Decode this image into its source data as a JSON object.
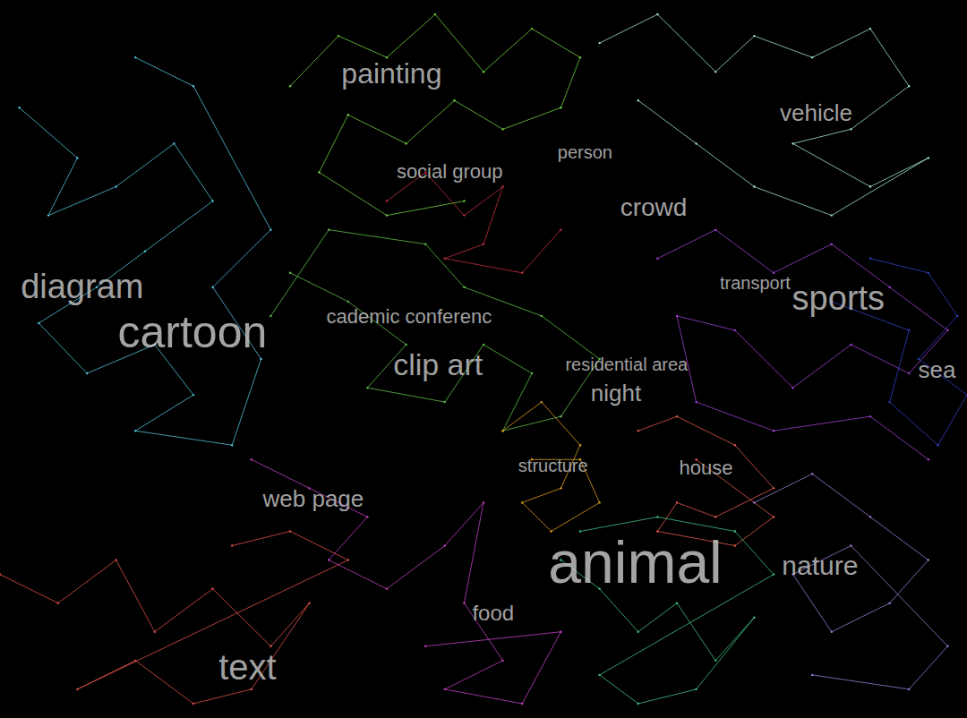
{
  "chart_data": {
    "type": "scatter",
    "marker": "dot",
    "line_style": "solid",
    "grid": false,
    "tick_labels": false,
    "xlim": [
      0,
      100
    ],
    "ylim": [
      0,
      100
    ],
    "series": [
      {
        "color": "#4fc3d9",
        "points": [
          [
            2,
            85
          ],
          [
            8,
            78
          ],
          [
            5,
            70
          ],
          [
            12,
            74
          ],
          [
            18,
            80
          ],
          [
            22,
            72
          ],
          [
            15,
            65
          ],
          [
            10,
            60
          ],
          [
            4,
            55
          ],
          [
            9,
            48
          ],
          [
            16,
            52
          ],
          [
            20,
            45
          ],
          [
            14,
            40
          ],
          [
            24,
            38
          ],
          [
            27,
            50
          ],
          [
            22,
            60
          ],
          [
            28,
            68
          ],
          [
            20,
            88
          ],
          [
            14,
            92
          ]
        ]
      },
      {
        "color": "#6fcf3f",
        "points": [
          [
            30,
            88
          ],
          [
            35,
            95
          ],
          [
            40,
            92
          ],
          [
            45,
            98
          ],
          [
            50,
            90
          ],
          [
            55,
            96
          ],
          [
            60,
            92
          ],
          [
            58,
            85
          ],
          [
            52,
            82
          ],
          [
            47,
            86
          ],
          [
            42,
            80
          ],
          [
            36,
            84
          ],
          [
            33,
            76
          ],
          [
            40,
            70
          ],
          [
            48,
            72
          ]
        ]
      },
      {
        "color": "#5fbf4a",
        "points": [
          [
            30,
            62
          ],
          [
            36,
            58
          ],
          [
            42,
            52
          ],
          [
            38,
            46
          ],
          [
            46,
            44
          ],
          [
            50,
            52
          ],
          [
            55,
            48
          ],
          [
            52,
            40
          ],
          [
            58,
            42
          ],
          [
            62,
            50
          ],
          [
            56,
            56
          ],
          [
            48,
            60
          ],
          [
            44,
            66
          ],
          [
            34,
            68
          ],
          [
            28,
            56
          ]
        ]
      },
      {
        "color": "#a0e0d0",
        "points": [
          [
            62,
            94
          ],
          [
            68,
            98
          ],
          [
            74,
            90
          ],
          [
            78,
            95
          ],
          [
            84,
            92
          ],
          [
            90,
            96
          ],
          [
            94,
            88
          ],
          [
            88,
            82
          ],
          [
            82,
            80
          ],
          [
            90,
            74
          ],
          [
            96,
            78
          ],
          [
            86,
            70
          ],
          [
            78,
            74
          ],
          [
            72,
            80
          ],
          [
            66,
            86
          ]
        ]
      },
      {
        "color": "#a040d0",
        "points": [
          [
            68,
            64
          ],
          [
            74,
            68
          ],
          [
            80,
            62
          ],
          [
            86,
            66
          ],
          [
            92,
            60
          ],
          [
            98,
            54
          ],
          [
            94,
            48
          ],
          [
            88,
            52
          ],
          [
            82,
            46
          ],
          [
            76,
            54
          ],
          [
            70,
            56
          ],
          [
            72,
            44
          ],
          [
            80,
            40
          ],
          [
            90,
            42
          ],
          [
            96,
            36
          ]
        ]
      },
      {
        "color": "#3040c0",
        "points": [
          [
            90,
            64
          ],
          [
            96,
            62
          ],
          [
            99,
            56
          ],
          [
            95,
            50
          ],
          [
            100,
            45
          ],
          [
            97,
            38
          ],
          [
            92,
            44
          ],
          [
            94,
            54
          ],
          [
            86,
            58
          ]
        ]
      },
      {
        "color": "#e0a020",
        "points": [
          [
            52,
            40
          ],
          [
            56,
            44
          ],
          [
            60,
            38
          ],
          [
            58,
            32
          ],
          [
            54,
            30
          ],
          [
            57,
            26
          ],
          [
            62,
            30
          ],
          [
            60,
            36
          ],
          [
            55,
            36
          ]
        ]
      },
      {
        "color": "#e05a4a",
        "points": [
          [
            66,
            40
          ],
          [
            70,
            42
          ],
          [
            76,
            38
          ],
          [
            80,
            32
          ],
          [
            74,
            28
          ],
          [
            70,
            30
          ],
          [
            68,
            26
          ],
          [
            76,
            24
          ],
          [
            80,
            28
          ],
          [
            72,
            36
          ]
        ]
      },
      {
        "color": "#e0504a",
        "points": [
          [
            0,
            20
          ],
          [
            6,
            16
          ],
          [
            12,
            22
          ],
          [
            16,
            12
          ],
          [
            22,
            18
          ],
          [
            28,
            10
          ],
          [
            32,
            16
          ],
          [
            26,
            4
          ],
          [
            20,
            2
          ],
          [
            14,
            8
          ],
          [
            8,
            4
          ],
          [
            36,
            22
          ],
          [
            30,
            26
          ],
          [
            24,
            24
          ]
        ]
      },
      {
        "color": "#c040c0",
        "points": [
          [
            26,
            36
          ],
          [
            32,
            32
          ],
          [
            38,
            28
          ],
          [
            34,
            22
          ],
          [
            40,
            18
          ],
          [
            46,
            24
          ],
          [
            50,
            30
          ],
          [
            48,
            16
          ],
          [
            52,
            8
          ],
          [
            46,
            4
          ],
          [
            54,
            2
          ],
          [
            58,
            12
          ],
          [
            44,
            10
          ]
        ]
      },
      {
        "color": "#40c080",
        "points": [
          [
            58,
            22
          ],
          [
            62,
            18
          ],
          [
            66,
            12
          ],
          [
            70,
            16
          ],
          [
            74,
            8
          ],
          [
            78,
            14
          ],
          [
            72,
            4
          ],
          [
            66,
            2
          ],
          [
            62,
            6
          ],
          [
            80,
            20
          ],
          [
            76,
            26
          ],
          [
            68,
            28
          ],
          [
            60,
            26
          ]
        ]
      },
      {
        "color": "#9a7ad0",
        "points": [
          [
            78,
            30
          ],
          [
            84,
            34
          ],
          [
            90,
            28
          ],
          [
            96,
            22
          ],
          [
            92,
            16
          ],
          [
            86,
            12
          ],
          [
            82,
            20
          ],
          [
            88,
            24
          ],
          [
            98,
            10
          ],
          [
            94,
            4
          ],
          [
            84,
            6
          ]
        ]
      },
      {
        "color": "#c03040",
        "points": [
          [
            40,
            72
          ],
          [
            44,
            76
          ],
          [
            48,
            70
          ],
          [
            52,
            74
          ],
          [
            50,
            66
          ],
          [
            46,
            64
          ],
          [
            54,
            62
          ],
          [
            58,
            68
          ]
        ]
      }
    ],
    "annotations": [
      {
        "text": "painting",
        "x": 40.5,
        "y": 89.8
      },
      {
        "text": "vehicle",
        "x": 84.4,
        "y": 84.3
      },
      {
        "text": "social group",
        "x": 46.5,
        "y": 76.1
      },
      {
        "text": "person",
        "x": 60.5,
        "y": 78.8
      },
      {
        "text": "crowd",
        "x": 67.6,
        "y": 71.1
      },
      {
        "text": "transport",
        "x": 78.1,
        "y": 60.6
      },
      {
        "text": "sports",
        "x": 86.7,
        "y": 58.5
      },
      {
        "text": "diagram",
        "x": 8.5,
        "y": 60.1
      },
      {
        "text": "cartoon",
        "x": 19.9,
        "y": 53.7
      },
      {
        "text": "cademic conferenc",
        "x": 42.3,
        "y": 55.9
      },
      {
        "text": "clip art",
        "x": 45.3,
        "y": 49.3
      },
      {
        "text": "residential area",
        "x": 64.8,
        "y": 49.3
      },
      {
        "text": "night",
        "x": 63.7,
        "y": 45.3
      },
      {
        "text": "sea",
        "x": 96.9,
        "y": 48.5
      },
      {
        "text": "structure",
        "x": 57.2,
        "y": 35.2
      },
      {
        "text": "house",
        "x": 73.0,
        "y": 34.8
      },
      {
        "text": "web page",
        "x": 32.4,
        "y": 30.5
      },
      {
        "text": "animal",
        "x": 65.7,
        "y": 21.7
      },
      {
        "text": "nature",
        "x": 84.8,
        "y": 21.3
      },
      {
        "text": "food",
        "x": 51.0,
        "y": 14.6
      },
      {
        "text": "text",
        "x": 25.6,
        "y": 7.1
      }
    ]
  }
}
